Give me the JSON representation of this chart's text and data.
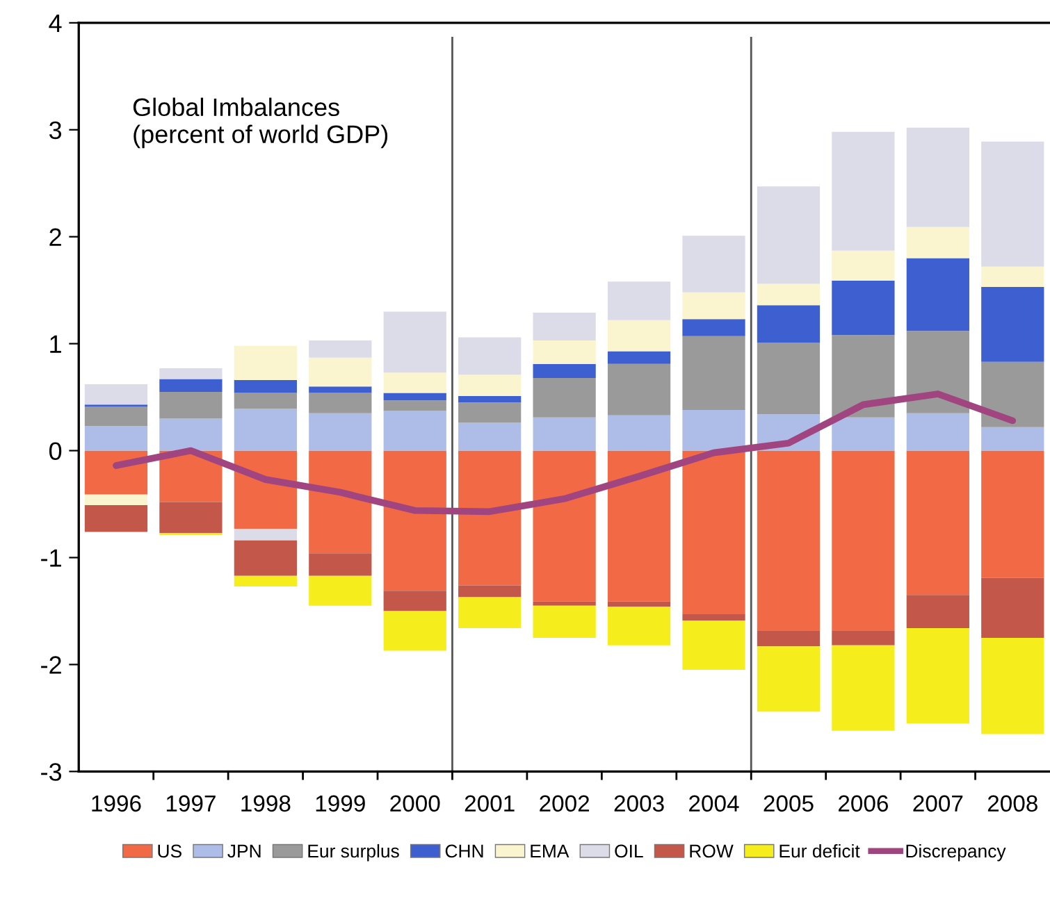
{
  "chart_data": {
    "type": "bar",
    "stacked": true,
    "title": "Global Imbalances\n(percent of world GDP)",
    "x": [
      1996,
      1997,
      1998,
      1999,
      2000,
      2001,
      2002,
      2003,
      2004,
      2005,
      2006,
      2007,
      2008
    ],
    "xlim": [
      1995.5,
      2008.5
    ],
    "xticks": [
      1996,
      1997,
      1998,
      1999,
      2000,
      2001,
      2002,
      2003,
      2004,
      2005,
      2006,
      2007,
      2008
    ],
    "ylim": [
      -3,
      4
    ],
    "yticks": [
      -3,
      -2,
      -1,
      0,
      1,
      2,
      3,
      4
    ],
    "grid": false,
    "legend": "bottom",
    "ref_lines": [
      {
        "axis": "x",
        "value": 2000.5,
        "color": "#555555"
      },
      {
        "axis": "x",
        "value": 2004.5,
        "color": "#555555"
      }
    ],
    "series": [
      {
        "name": "US",
        "color": "#f26a45",
        "values": [
          -0.41,
          -0.48,
          -0.73,
          -0.96,
          -1.31,
          -1.26,
          -1.41,
          -1.41,
          -1.53,
          -1.68,
          -1.68,
          -1.35,
          -1.19
        ]
      },
      {
        "name": "JPN",
        "color": "#aebde8",
        "values": [
          0.23,
          0.3,
          0.39,
          0.35,
          0.37,
          0.26,
          0.31,
          0.33,
          0.38,
          0.34,
          0.31,
          0.35,
          0.22
        ]
      },
      {
        "name": "Eur surplus",
        "color": "#9a9a9a",
        "values": [
          0.18,
          0.25,
          0.15,
          0.19,
          0.1,
          0.19,
          0.37,
          0.48,
          0.69,
          0.67,
          0.77,
          0.77,
          0.61
        ]
      },
      {
        "name": "CHN",
        "color": "#3e5fcf",
        "values": [
          0.02,
          0.12,
          0.12,
          0.06,
          0.07,
          0.06,
          0.13,
          0.12,
          0.16,
          0.35,
          0.51,
          0.68,
          0.7
        ]
      },
      {
        "name": "EMA",
        "color": "#fbf5cf",
        "values": [
          -0.1,
          0,
          0.32,
          0.27,
          0.19,
          0.2,
          0.22,
          0.29,
          0.25,
          0.2,
          0.28,
          0.29,
          0.19
        ]
      },
      {
        "name": "OIL",
        "color": "#dcdce8",
        "values": [
          0.19,
          0.1,
          -0.11,
          0.16,
          0.57,
          0.35,
          0.26,
          0.36,
          0.53,
          0.91,
          1.11,
          0.93,
          1.17
        ]
      },
      {
        "name": "ROW",
        "color": "#c2574a",
        "values": [
          -0.25,
          -0.29,
          -0.33,
          -0.21,
          -0.19,
          -0.11,
          -0.04,
          -0.05,
          -0.06,
          -0.15,
          -0.14,
          -0.31,
          -0.56
        ]
      },
      {
        "name": "Eur deficit",
        "color": "#f5ee1c",
        "values": [
          0,
          -0.02,
          -0.1,
          -0.28,
          -0.37,
          -0.29,
          -0.3,
          -0.36,
          -0.46,
          -0.61,
          -0.8,
          -0.89,
          -0.9
        ]
      },
      {
        "name": "Discrepancy",
        "type": "line",
        "color": "#a0457f",
        "line_style": "solid",
        "marker": "none",
        "values": [
          -0.14,
          0.0,
          -0.27,
          -0.39,
          -0.56,
          -0.57,
          -0.45,
          -0.24,
          -0.02,
          0.07,
          0.43,
          0.53,
          0.28
        ]
      }
    ]
  }
}
